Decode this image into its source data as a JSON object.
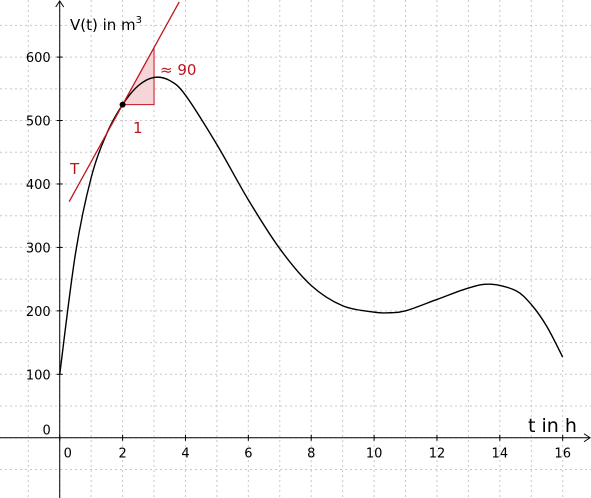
{
  "chart_data": {
    "type": "line",
    "xlabel": "t in h",
    "ylabel_main": "V(t) in m",
    "ylabel_sup": "3",
    "xlim": [
      -1.9,
      16.9
    ],
    "ylim": [
      -95,
      690
    ],
    "x_ticks": [
      0,
      2,
      4,
      6,
      8,
      10,
      12,
      14,
      16
    ],
    "y_ticks": [
      0,
      100,
      200,
      300,
      400,
      500,
      600
    ],
    "x_tick_labels": [
      "0",
      "2",
      "4",
      "6",
      "8",
      "10",
      "12",
      "14",
      "16"
    ],
    "y_tick_labels": [
      "0",
      "100",
      "200",
      "300",
      "400",
      "500",
      "600"
    ],
    "grid": true,
    "series": [
      {
        "color": "#000000",
        "points": [
          [
            0,
            100
          ],
          [
            0.5,
            290
          ],
          [
            1,
            410
          ],
          [
            1.5,
            480
          ],
          [
            2,
            525
          ],
          [
            2.5,
            555
          ],
          [
            3,
            568
          ],
          [
            3.5,
            563
          ],
          [
            4,
            540
          ],
          [
            5,
            462
          ],
          [
            6,
            375
          ],
          [
            7,
            298
          ],
          [
            8,
            240
          ],
          [
            9,
            208
          ],
          [
            10,
            198
          ],
          [
            10.5,
            197
          ],
          [
            11,
            200
          ],
          [
            12,
            218
          ],
          [
            13,
            236
          ],
          [
            13.7,
            242
          ],
          [
            14.5,
            232
          ],
          [
            15,
            210
          ],
          [
            15.5,
            175
          ],
          [
            16,
            127
          ]
        ]
      }
    ],
    "tangent": {
      "label": "T",
      "color": "#c0141e",
      "point": [
        2,
        525
      ],
      "slope": 90,
      "x_range": [
        0.3,
        3.8
      ]
    },
    "slope_triangle": {
      "run_label": "1",
      "rise_label": "≈ 90",
      "fill": "#f5d5d8",
      "from": [
        2,
        525
      ],
      "run": 1,
      "rise": 90
    },
    "marked_point": [
      2,
      525
    ]
  }
}
